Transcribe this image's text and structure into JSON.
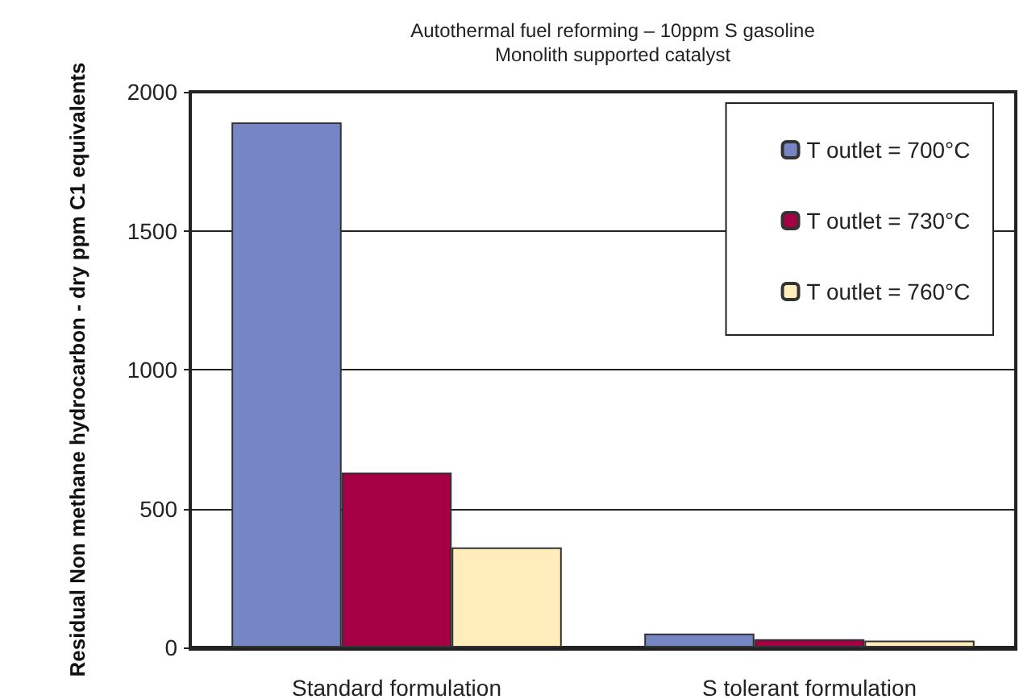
{
  "chart_data": {
    "type": "bar",
    "title": "Autothermal fuel reforming – 10ppm S gasoline",
    "subtitle": "Monolith supported catalyst",
    "ylabel": "Residual Non methane hydrocarbon - dry ppm C1 equivalents",
    "categories": [
      "Standard formulation",
      "S tolerant formulation"
    ],
    "series": [
      {
        "name": "T outlet = 700°C",
        "color": "#7686c4",
        "values": [
          1890,
          50
        ]
      },
      {
        "name": "T outlet = 730°C",
        "color": "#a50044",
        "values": [
          630,
          30
        ]
      },
      {
        "name": "T outlet = 760°C",
        "color": "#ffeebb",
        "values": [
          360,
          25
        ]
      }
    ],
    "ylim": [
      0,
      2000
    ],
    "yticks": [
      0,
      500,
      1000,
      1500,
      2000
    ],
    "grid": "y",
    "legend": "top right"
  }
}
